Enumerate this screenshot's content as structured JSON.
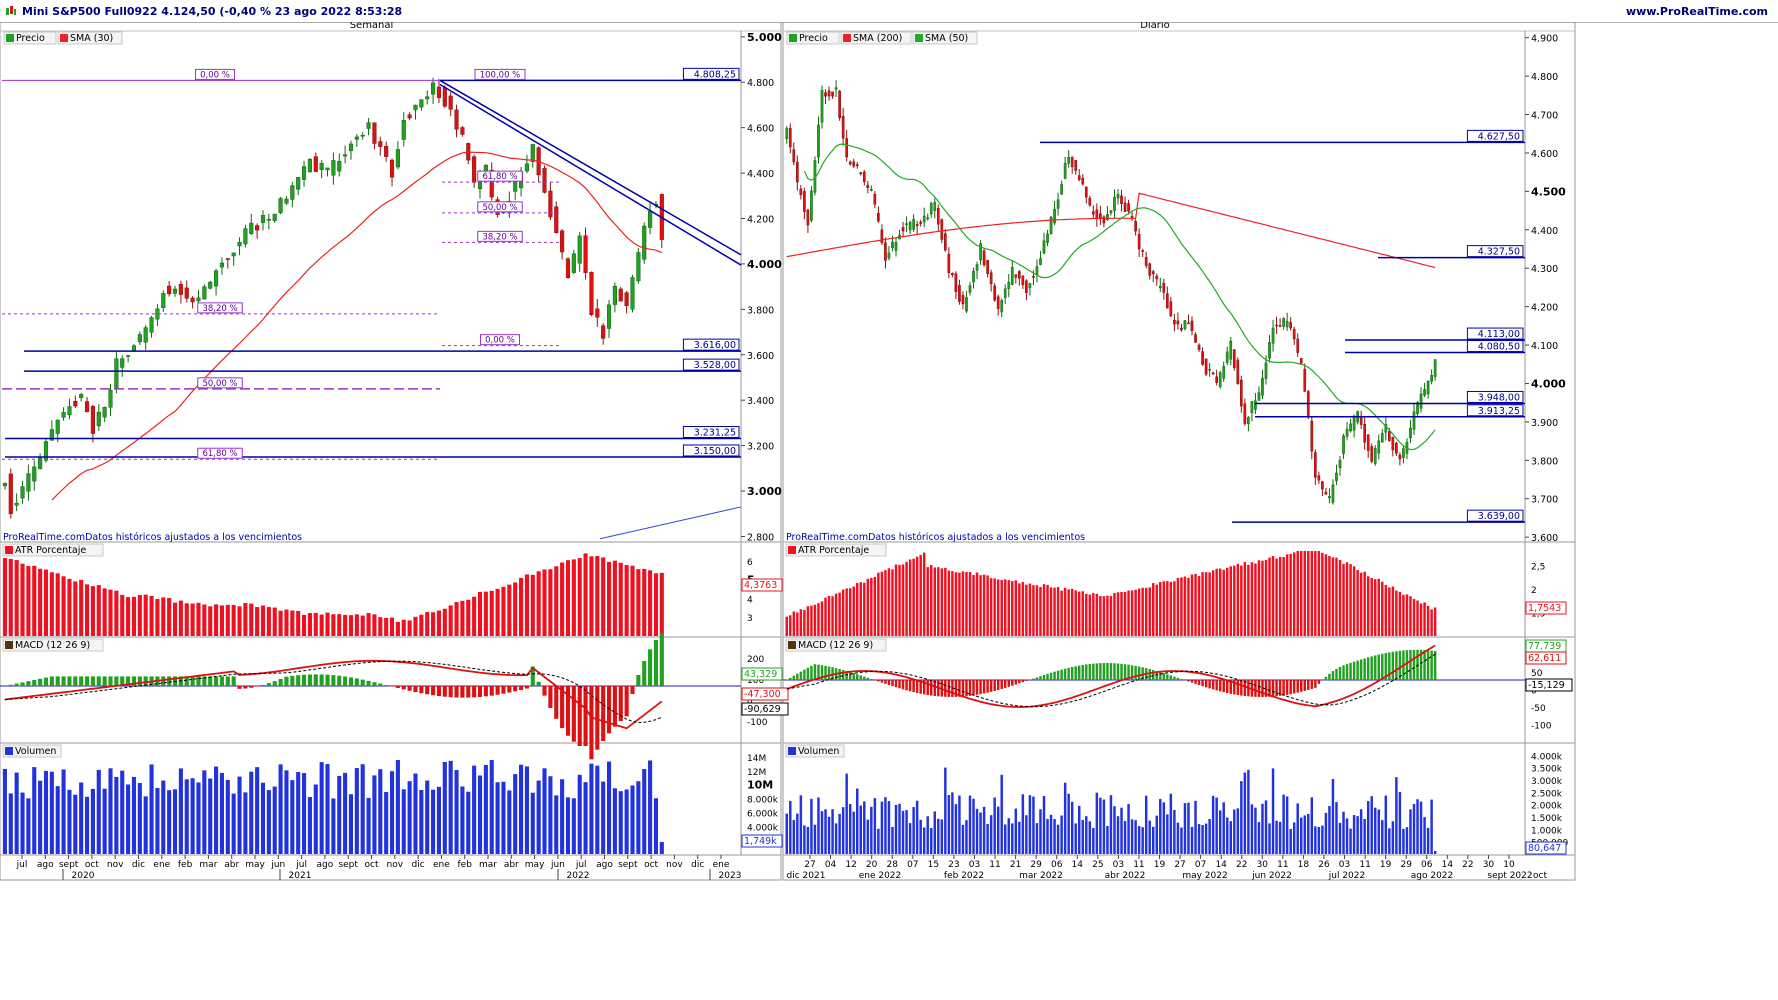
{
  "header": {
    "title": "Mini S&P500 Full0922 4.124,50 (-0,40 % 23 ago 2022 8:53:28",
    "site": "www.ProRealTime.com"
  },
  "chart_data": [
    {
      "panel": "Semanal",
      "type": "candlestick",
      "title": "Semanal",
      "legend": [
        "Precio",
        "SMA (30)"
      ],
      "credit": "ProRealTime.comDatos históricos ajustados a los vencimientos",
      "y_ticks": [
        2800,
        3000,
        3200,
        3400,
        3600,
        3800,
        4000,
        4200,
        4400,
        4600,
        4800,
        5000
      ],
      "y_tick_labels": [
        "2.800",
        "3.000",
        "3.200",
        "3.400",
        "3.600",
        "3.800",
        "4.000",
        "4.200",
        "4.400",
        "4.600",
        "4.800",
        "5.000"
      ],
      "ylim": [
        2780,
        5030
      ],
      "x_month_labels": [
        "jul",
        "ago",
        "sept",
        "oct",
        "nov",
        "dic",
        "ene",
        "feb",
        "mar",
        "abr",
        "may",
        "jun",
        "jul",
        "ago",
        "sept",
        "oct",
        "nov",
        "dic",
        "ene",
        "feb",
        "mar",
        "abr",
        "may",
        "jun",
        "jul",
        "ago",
        "sept",
        "oct",
        "nov",
        "dic",
        "ene"
      ],
      "x_year_labels": [
        "2020",
        "2021",
        "2022",
        "2023"
      ],
      "horizontal_levels": [
        {
          "value": 4808.25,
          "label": "4.808,25"
        },
        {
          "value": 3616.0,
          "label": "3.616,00"
        },
        {
          "value": 3528.0,
          "label": "3.528,00"
        },
        {
          "value": 3231.25,
          "label": "3.231,25"
        },
        {
          "value": 3150.0,
          "label": "3.150,00"
        }
      ],
      "fibo_labels": [
        {
          "label": "0,00 %",
          "value": 4808.25
        },
        {
          "label": "100,00 %",
          "value": 4808.25
        },
        {
          "label": "61,80 %",
          "value": 4360
        },
        {
          "label": "50,00 %",
          "value": 4225
        },
        {
          "label": "38,20 %",
          "value": 4095
        },
        {
          "label": "0,00 %",
          "value": 3640
        },
        {
          "label": "38,20 %",
          "value": 3780
        },
        {
          "label": "50,00 %",
          "value": 3450
        },
        {
          "label": "61,80 %",
          "value": 3140
        }
      ],
      "last_close": 4124.5,
      "subpanels": {
        "atr": {
          "label": "ATR Porcentaje",
          "value_label": "4,3763",
          "y_tick_labels": [
            "3",
            "4",
            "5",
            "6"
          ]
        },
        "macd": {
          "label": "MACD (12 26 9)",
          "value_labels": [
            "43,329",
            "-47,300",
            "-90,629"
          ],
          "y_tick_labels": [
            "200",
            "100",
            "0",
            "-100"
          ]
        },
        "volume": {
          "label": "Volumen",
          "value_label": "1,749k",
          "y_tick_labels": [
            "14M",
            "12M",
            "10M",
            "8.000k",
            "6.000k",
            "4.000k",
            "2.000k"
          ]
        }
      }
    },
    {
      "panel": "Diario",
      "type": "candlestick",
      "title": "Diario",
      "legend": [
        "Precio",
        "SMA (200)",
        "SMA (50)"
      ],
      "credit": "ProRealTime.comDatos históricos ajustados a los vencimientos",
      "y_ticks": [
        3600,
        3700,
        3800,
        3900,
        4000,
        4100,
        4200,
        4300,
        4400,
        4500,
        4600,
        4700,
        4800,
        4900
      ],
      "y_tick_labels": [
        "3.600",
        "3.700",
        "3.800",
        "3.900",
        "4.000",
        "4.100",
        "4.200",
        "4.300",
        "4.400",
        "4.500",
        "4.600",
        "4.700",
        "4.800",
        "4.900"
      ],
      "ylim": [
        3590,
        4920
      ],
      "x_day_labels": [
        "27",
        "04",
        "12",
        "20",
        "28",
        "07",
        "15",
        "23",
        "03",
        "11",
        "21",
        "29",
        "06",
        "14",
        "25",
        "03",
        "11",
        "19",
        "27",
        "07",
        "14",
        "22",
        "30",
        "11",
        "18",
        "26",
        "03",
        "11",
        "19",
        "29",
        "06",
        "14",
        "22",
        "30",
        "10"
      ],
      "x_month_labels": [
        "dic 2021",
        "ene 2022",
        "feb 2022",
        "mar 2022",
        "abr 2022",
        "may 2022",
        "jun 2022",
        "jul 2022",
        "ago 2022",
        "sept 2022",
        "oct"
      ],
      "horizontal_levels": [
        {
          "value": 4627.5,
          "label": "4.627,50"
        },
        {
          "value": 4327.5,
          "label": "4.327,50"
        },
        {
          "value": 4113.0,
          "label": "4.113,00"
        },
        {
          "value": 4080.5,
          "label": "4.080,50"
        },
        {
          "value": 3948.0,
          "label": "3.948,00"
        },
        {
          "value": 3913.25,
          "label": "3.913,25"
        },
        {
          "value": 3639.0,
          "label": "3.639,00"
        }
      ],
      "last_close": 4124.5,
      "subpanels": {
        "atr": {
          "label": "ATR Porcentaje",
          "value_label": "1,7543",
          "y_tick_labels": [
            "1,5",
            "2",
            "2,5"
          ]
        },
        "macd": {
          "label": "MACD (12 26 9)",
          "value_labels": [
            "77,739",
            "62,611",
            "-15,129"
          ],
          "y_tick_labels": [
            "100",
            "50",
            "0",
            "-50",
            "-100"
          ]
        },
        "volume": {
          "label": "Volumen",
          "value_label": "80,647",
          "y_tick_labels": [
            "4.000k",
            "3.500k",
            "3.000k",
            "2.500k",
            "2.000k",
            "1.500k",
            "1.000k",
            "500,000"
          ]
        }
      }
    }
  ],
  "colors": {
    "up": "#22a022",
    "down": "#dd1111",
    "level_line": "#0000aa",
    "fibo": "#9933cc",
    "sma_red": "#ee2222",
    "sma_green": "#22aa22",
    "volume": "#2233dd",
    "atr": "#ee1122",
    "frame": "#000080"
  }
}
